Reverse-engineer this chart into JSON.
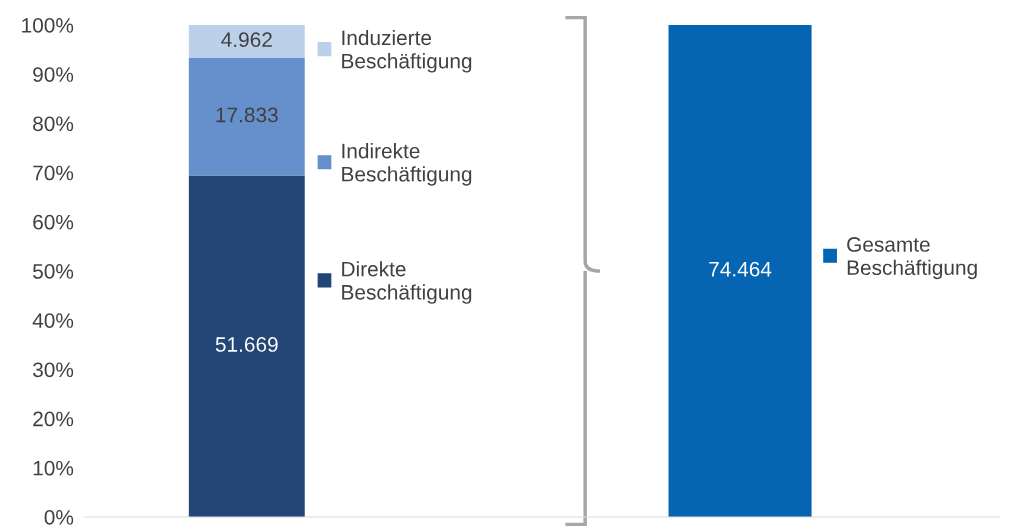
{
  "chart_data": {
    "type": "bar",
    "stacked": true,
    "categories": [
      null,
      null
    ],
    "series": [
      {
        "name": "Direkte Beschäftigung",
        "color": "#234677",
        "values": [
          69.4,
          null
        ]
      },
      {
        "name": "Indirekte Beschäftigung",
        "color": "#6690cc",
        "values": [
          23.9,
          null
        ]
      },
      {
        "name": "Induzierte Beschäftigung",
        "color": "#bcd0ea",
        "values": [
          6.7,
          null
        ]
      },
      {
        "name": "Gesamte Beschäftigung",
        "color": "#0565b3",
        "values": [
          null,
          100
        ]
      }
    ],
    "annotations": [
      "51.669",
      "17.833",
      "4.962",
      "74.464"
    ],
    "ylim": [
      0,
      100
    ],
    "yticks": [
      {
        "value": 0,
        "label": "0%"
      },
      {
        "value": 10,
        "label": "10%"
      },
      {
        "value": 20,
        "label": "20%"
      },
      {
        "value": 30,
        "label": "30%"
      },
      {
        "value": 40,
        "label": "40%"
      },
      {
        "value": 50,
        "label": "50%"
      },
      {
        "value": 60,
        "label": "60%"
      },
      {
        "value": 70,
        "label": "70%"
      },
      {
        "value": 80,
        "label": "80%"
      },
      {
        "value": 90,
        "label": "90%"
      },
      {
        "value": 100,
        "label": "100%"
      }
    ],
    "legend": "right",
    "grid": false
  }
}
